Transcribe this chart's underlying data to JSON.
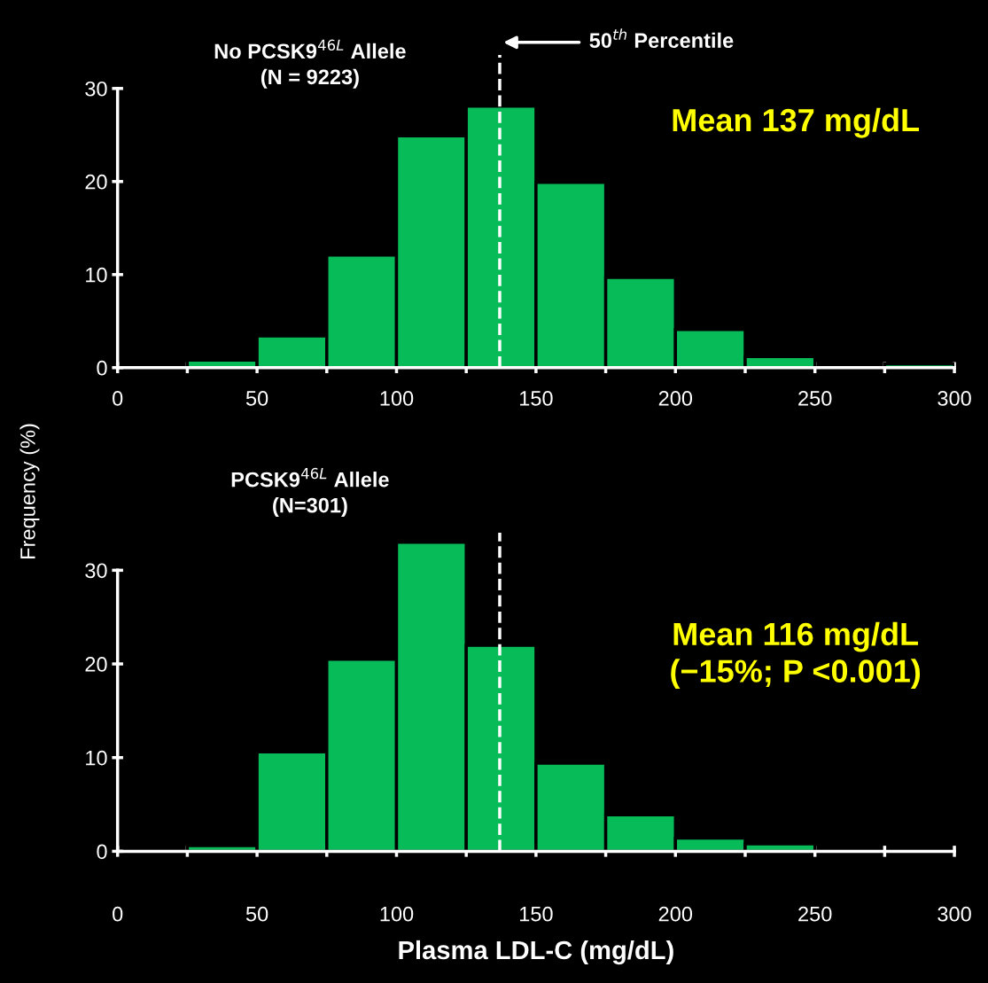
{
  "chart_data": [
    {
      "type": "histogram",
      "title": "No PCSK9$^{46L}$ Allele\n(N = 9223)",
      "ylabel": "Frequency (%)",
      "bins": [
        25,
        50,
        75,
        100,
        125,
        150,
        175,
        200,
        225,
        250,
        275,
        300
      ],
      "values": [
        0.8,
        3.4,
        12.1,
        24.9,
        28.1,
        19.9,
        9.7,
        4.1,
        1.2,
        0,
        0.4
      ],
      "color": "#06bb58",
      "xlim": [
        0,
        300
      ],
      "xticks": [
        0,
        {
          "value": 25,
          "label": null
        },
        50,
        {
          "value": 75,
          "label": null
        },
        100,
        {
          "value": 125,
          "label": null
        },
        150,
        {
          "value": 175,
          "label": null
        },
        200,
        {
          "value": 225,
          "label": null
        },
        250,
        {
          "value": 275,
          "label": null
        },
        300
      ],
      "ylim": [
        0,
        30
      ],
      "yticks": [
        0,
        10,
        20,
        30
      ],
      "grid": false,
      "legend": false,
      "ref_lines": [
        {
          "axis": "x",
          "value": 137,
          "label": "50$^{th}$ Percentile",
          "color": "#ffffff",
          "line_style": "dashed"
        }
      ],
      "annotations": [
        "Mean 137 mg/dL"
      ]
    },
    {
      "type": "histogram",
      "title": "PCSK9$^{46L}$ Allele\n(N=301)",
      "xlabel": "Plasma LDL-C (mg/dL)",
      "bins": [
        25,
        50,
        75,
        100,
        125,
        150,
        175,
        200,
        225,
        250,
        275,
        300
      ],
      "values": [
        0.6,
        10.6,
        20.5,
        33.0,
        22.0,
        9.4,
        3.9,
        1.4,
        0.8,
        0,
        0
      ],
      "color": "#06bb58",
      "xlim": [
        0,
        300
      ],
      "xticks": [
        0,
        {
          "value": 25,
          "label": null
        },
        50,
        {
          "value": 75,
          "label": null
        },
        100,
        {
          "value": 125,
          "label": null
        },
        150,
        {
          "value": 175,
          "label": null
        },
        200,
        {
          "value": 225,
          "label": null
        },
        250,
        {
          "value": 275,
          "label": null
        },
        300
      ],
      "ylim": [
        0,
        34
      ],
      "yticks": [
        0,
        10,
        20,
        30
      ],
      "grid": false,
      "legend": false,
      "ref_lines": [
        {
          "axis": "x",
          "value": 137,
          "label": null,
          "color": "#ffffff",
          "line_style": "dashed"
        }
      ],
      "annotations": [
        "Mean 116 mg/dL\n(−15%; P <0.001)"
      ]
    }
  ]
}
